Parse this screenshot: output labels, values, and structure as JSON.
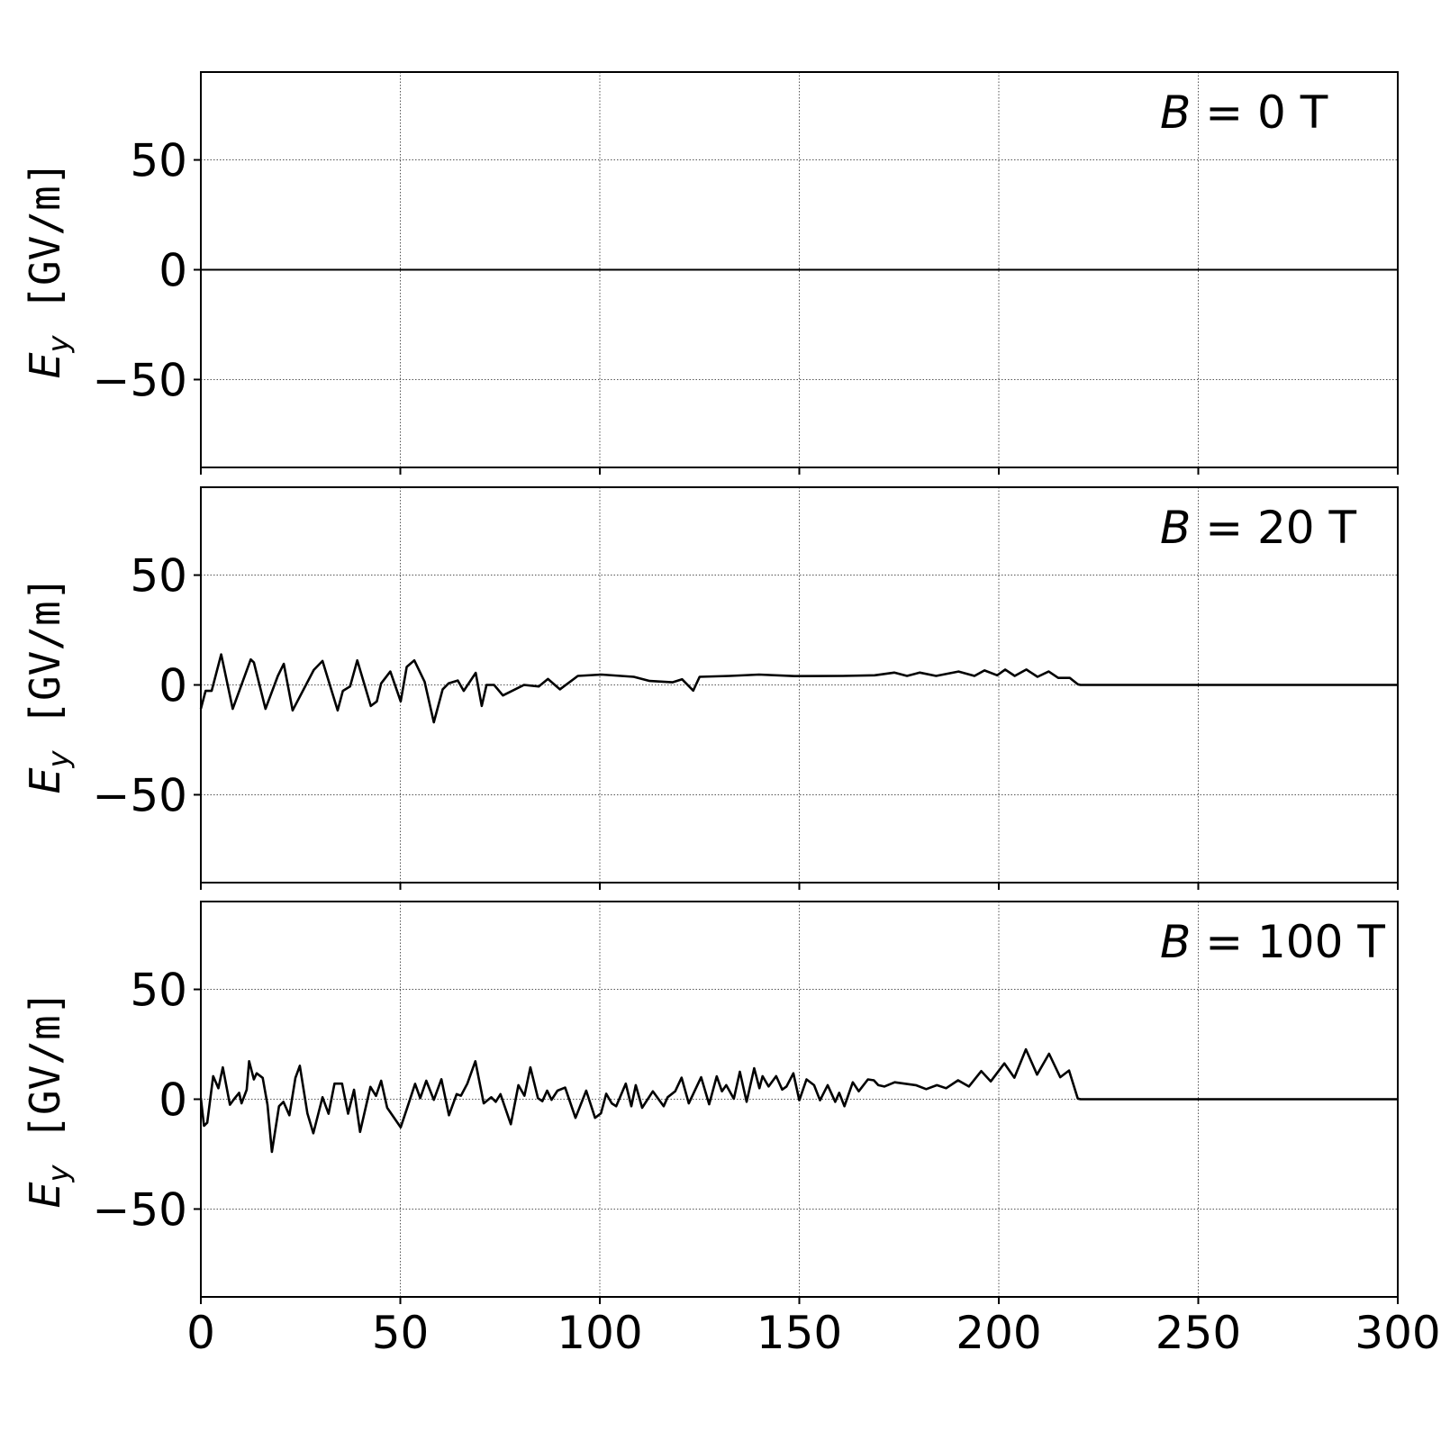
{
  "chart_data": [
    {
      "type": "line",
      "annotation": {
        "symbol": "B",
        "eq": " = ",
        "value": "0 T"
      },
      "ylabel": {
        "symbol": "E",
        "subscript": "y",
        "unit": " [GV/m]"
      },
      "xlim": [
        0,
        300
      ],
      "ylim": [
        -90,
        90
      ],
      "xticks": [
        0,
        50,
        100,
        150,
        200,
        250,
        300
      ],
      "yticks": [
        -50,
        0,
        50
      ],
      "ytick_labels": [
        "−50",
        "0",
        "50"
      ],
      "show_xtick_labels": false,
      "grid": true,
      "line_color": "#000000",
      "points": [
        [
          0,
          0
        ],
        [
          300,
          0
        ]
      ]
    },
    {
      "type": "line",
      "annotation": {
        "symbol": "B",
        "eq": " = ",
        "value": "20 T"
      },
      "ylabel": {
        "symbol": "E",
        "subscript": "y",
        "unit": " [GV/m]"
      },
      "xlim": [
        0,
        300
      ],
      "ylim": [
        -90,
        90
      ],
      "xticks": [
        0,
        50,
        100,
        150,
        200,
        250,
        300
      ],
      "yticks": [
        -50,
        0,
        50
      ],
      "ytick_labels": [
        "−50",
        "0",
        "50"
      ],
      "show_xtick_labels": false,
      "grid": true,
      "line_color": "#000000",
      "points": [
        [
          0,
          -10.9
        ],
        [
          1.2,
          -2.7
        ],
        [
          2.7,
          -2.7
        ],
        [
          5.1,
          13.9
        ],
        [
          8.0,
          -10.9
        ],
        [
          12.5,
          11.6
        ],
        [
          13.3,
          10.2
        ],
        [
          16.2,
          -10.9
        ],
        [
          19.3,
          4.1
        ],
        [
          20.8,
          9.6
        ],
        [
          23.0,
          -11.6
        ],
        [
          28.3,
          6.8
        ],
        [
          30.5,
          10.9
        ],
        [
          34.3,
          -11.6
        ],
        [
          35.6,
          -2.7
        ],
        [
          37.4,
          -0.7
        ],
        [
          39.2,
          11.2
        ],
        [
          42.6,
          -9.6
        ],
        [
          44.1,
          -7.5
        ],
        [
          45.2,
          0.7
        ],
        [
          47.5,
          6.1
        ],
        [
          50.1,
          -7.5
        ],
        [
          51.6,
          8.2
        ],
        [
          53.5,
          11.2
        ],
        [
          56.1,
          1.4
        ],
        [
          58.4,
          -17
        ],
        [
          60.6,
          -2
        ],
        [
          62.1,
          0.7
        ],
        [
          64.4,
          2
        ],
        [
          65.9,
          -2.7
        ],
        [
          68.9,
          5.5
        ],
        [
          70.4,
          -9.6
        ],
        [
          71.6,
          0
        ],
        [
          73.5,
          0
        ],
        [
          75.7,
          -4.8
        ],
        [
          81,
          0
        ],
        [
          84.7,
          -0.7
        ],
        [
          87,
          2.7
        ],
        [
          90,
          -2
        ],
        [
          94.5,
          4.1
        ],
        [
          100.4,
          4.7
        ],
        [
          108.5,
          3.7
        ],
        [
          112.5,
          1.8
        ],
        [
          118.2,
          1.2
        ],
        [
          120.6,
          2.6
        ],
        [
          123.4,
          -2.6
        ],
        [
          125,
          3.7
        ],
        [
          132.6,
          4.1
        ],
        [
          139.9,
          4.7
        ],
        [
          148.8,
          4
        ],
        [
          160.9,
          4.1
        ],
        [
          168.9,
          4.4
        ],
        [
          173.8,
          5.6
        ],
        [
          177,
          4.1
        ],
        [
          180.2,
          5.6
        ],
        [
          184.3,
          4.1
        ],
        [
          189.9,
          6.1
        ],
        [
          193.9,
          4.1
        ],
        [
          196.4,
          6.6
        ],
        [
          199.6,
          4.4
        ],
        [
          201.6,
          7
        ],
        [
          204,
          4.1
        ],
        [
          206.9,
          7
        ],
        [
          209.7,
          3.7
        ],
        [
          212.5,
          6.1
        ],
        [
          214.9,
          3.2
        ],
        [
          217.8,
          3.2
        ],
        [
          219.8,
          0.3
        ],
        [
          220.5,
          0
        ],
        [
          300,
          0
        ]
      ]
    },
    {
      "type": "line",
      "annotation": {
        "symbol": "B",
        "eq": " = ",
        "value": "100 T"
      },
      "ylabel": {
        "symbol": "E",
        "subscript": "y",
        "unit": " [GV/m]"
      },
      "xlim": [
        0,
        300
      ],
      "ylim": [
        -90,
        90
      ],
      "xticks": [
        0,
        50,
        100,
        150,
        200,
        250,
        300
      ],
      "yticks": [
        -50,
        0,
        50
      ],
      "ytick_labels": [
        "−50",
        "0",
        "50"
      ],
      "xtick_labels": [
        "0",
        "50",
        "100",
        "150",
        "200",
        "250",
        "300"
      ],
      "show_xtick_labels": true,
      "grid": true,
      "line_color": "#000000",
      "points": [
        [
          0,
          0.5
        ],
        [
          0.8,
          -12.1
        ],
        [
          1.6,
          -10.7
        ],
        [
          3.1,
          10.5
        ],
        [
          4.4,
          5
        ],
        [
          5.5,
          14.5
        ],
        [
          7.3,
          -2.5
        ],
        [
          8.4,
          0.2
        ],
        [
          9.6,
          2.9
        ],
        [
          10.2,
          -1.9
        ],
        [
          11.5,
          4.3
        ],
        [
          12.1,
          17.3
        ],
        [
          13.3,
          9
        ],
        [
          14,
          11.8
        ],
        [
          15.5,
          9.7
        ],
        [
          16.7,
          -2.5
        ],
        [
          17.8,
          -24
        ],
        [
          19.6,
          -3.2
        ],
        [
          20.7,
          -1.2
        ],
        [
          22.2,
          -7.3
        ],
        [
          23.7,
          9.7
        ],
        [
          24.8,
          15.2
        ],
        [
          26.7,
          -6.4
        ],
        [
          28.2,
          -15.5
        ],
        [
          30.5,
          0.9
        ],
        [
          32,
          -6.6
        ],
        [
          33.5,
          7.1
        ],
        [
          35.4,
          7.1
        ],
        [
          36.9,
          -6.6
        ],
        [
          38.4,
          4.3
        ],
        [
          39.9,
          -14.9
        ],
        [
          42.5,
          5.6
        ],
        [
          43.9,
          1.5
        ],
        [
          45.2,
          8.4
        ],
        [
          46.7,
          -3.9
        ],
        [
          50.1,
          -12.8
        ],
        [
          51.6,
          -4.6
        ],
        [
          53.7,
          7
        ],
        [
          55,
          0.5
        ],
        [
          56.5,
          8.4
        ],
        [
          58.4,
          -0.3
        ],
        [
          60.3,
          9.1
        ],
        [
          62.2,
          -7.3
        ],
        [
          64.1,
          2.3
        ],
        [
          65.2,
          1.6
        ],
        [
          66.8,
          7.1
        ],
        [
          68.8,
          17.3
        ],
        [
          70.9,
          -1.9
        ],
        [
          72.8,
          0.9
        ],
        [
          73.9,
          -1.2
        ],
        [
          75.1,
          2.3
        ],
        [
          77.7,
          -11.4
        ],
        [
          79.6,
          6.4
        ],
        [
          81.1,
          1.6
        ],
        [
          82.6,
          14.5
        ],
        [
          84.5,
          0.5
        ],
        [
          85.6,
          -0.9
        ],
        [
          86.8,
          3.9
        ],
        [
          87.9,
          -0.3
        ],
        [
          89.4,
          3.9
        ],
        [
          91.3,
          5.3
        ],
        [
          93.9,
          -8.5
        ],
        [
          96.6,
          3.9
        ],
        [
          98.8,
          -8.5
        ],
        [
          100.3,
          -6.4
        ],
        [
          101.6,
          2.5
        ],
        [
          103,
          -1.9
        ],
        [
          104.1,
          -3.2
        ],
        [
          106.5,
          7.1
        ],
        [
          107.9,
          -3.2
        ],
        [
          109,
          6.4
        ],
        [
          110.6,
          -3.9
        ],
        [
          113.3,
          3.6
        ],
        [
          116,
          -3.2
        ],
        [
          117,
          0.9
        ],
        [
          118.9,
          3.6
        ],
        [
          120.5,
          9.8
        ],
        [
          122.3,
          -1.9
        ],
        [
          125.4,
          10
        ],
        [
          127.4,
          -2.3
        ],
        [
          129.3,
          10.4
        ],
        [
          130.6,
          3.6
        ],
        [
          131.7,
          6.4
        ],
        [
          133.6,
          0.2
        ],
        [
          135.1,
          12.5
        ],
        [
          136.8,
          -1.2
        ],
        [
          138.7,
          14.1
        ],
        [
          140,
          5
        ],
        [
          140.8,
          10.5
        ],
        [
          142.3,
          5.8
        ],
        [
          144.2,
          10.5
        ],
        [
          145.7,
          4.4
        ],
        [
          146.8,
          5.8
        ],
        [
          148.5,
          11.8
        ],
        [
          150,
          -0.5
        ],
        [
          151.8,
          9
        ],
        [
          153.7,
          6.4
        ],
        [
          155.2,
          -0.5
        ],
        [
          157.1,
          6.4
        ],
        [
          159,
          -1.2
        ],
        [
          160,
          2.9
        ],
        [
          161.3,
          -3.2
        ],
        [
          163.4,
          7.7
        ],
        [
          164.9,
          3.6
        ],
        [
          167.2,
          9
        ],
        [
          168.7,
          8.6
        ],
        [
          169.8,
          6.4
        ],
        [
          171.3,
          5.8
        ],
        [
          173.9,
          7.7
        ],
        [
          179.2,
          6.4
        ],
        [
          181.8,
          4.6
        ],
        [
          184.5,
          6.4
        ],
        [
          186.8,
          5
        ],
        [
          189.8,
          8.6
        ],
        [
          192.5,
          5.8
        ],
        [
          195.6,
          12.8
        ],
        [
          198,
          8.1
        ],
        [
          201.4,
          16.3
        ],
        [
          203.9,
          9.8
        ],
        [
          206.8,
          22.7
        ],
        [
          209.6,
          11.2
        ],
        [
          212.6,
          20.7
        ],
        [
          215.4,
          10
        ],
        [
          217.6,
          13.1
        ],
        [
          219.8,
          0.3
        ],
        [
          220.5,
          0
        ],
        [
          300,
          0
        ]
      ]
    }
  ]
}
